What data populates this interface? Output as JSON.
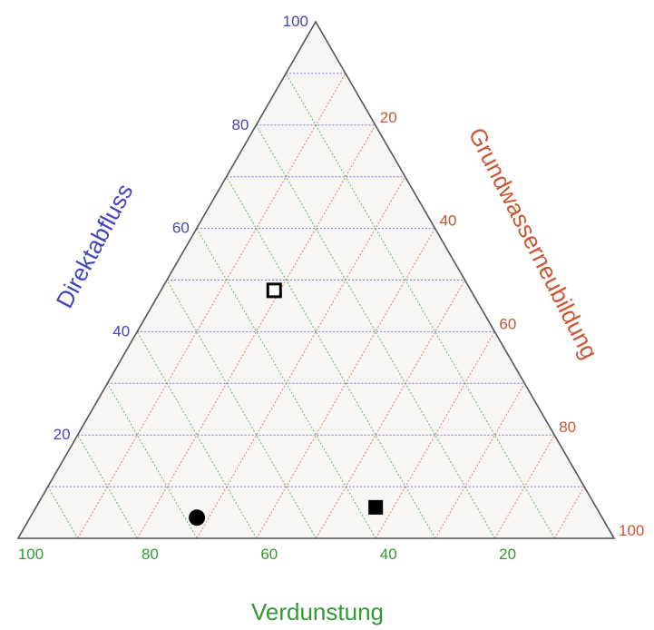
{
  "chart_data": {
    "type": "ternary",
    "axes": {
      "left": {
        "label": "Direktabfluss",
        "ticks": [
          20,
          40,
          60,
          80,
          100
        ],
        "color": "#4444bb"
      },
      "right": {
        "label": "Grundwasserneubildung",
        "ticks": [
          20,
          40,
          60,
          80,
          100
        ],
        "color": "#cc5533"
      },
      "bottom": {
        "label": "Verdunstung",
        "ticks": [
          100,
          80,
          60,
          40,
          20
        ],
        "color": "#339933"
      }
    },
    "grid": true,
    "grid_step": 10,
    "points": [
      {
        "marker": "circle-filled",
        "direktabfluss": 4,
        "verdunstung": 68,
        "grundwasserneubildung": 28
      },
      {
        "marker": "square-filled",
        "direktabfluss": 6,
        "verdunstung": 37,
        "grundwasserneubildung": 57
      },
      {
        "marker": "square-open",
        "direktabfluss": 48,
        "verdunstung": 33,
        "grundwasserneubildung": 19
      }
    ],
    "colors": {
      "triangle_fill": "#f7f6f5",
      "triangle_edge": "#555555",
      "marker": "#000000"
    }
  }
}
